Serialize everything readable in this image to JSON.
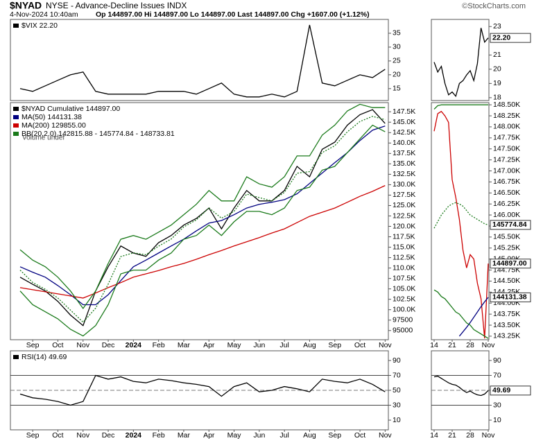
{
  "header": {
    "symbol": "$NYAD",
    "name": "NYSE - Advance-Decline Issues INDX",
    "date": "4-Nov-2024 10:40am",
    "quote": "Op 144897.00 Hi 144897.00 Lo 144897.00 Last 144897.00 Chg +1607.00 (+1.12%)",
    "credit": "©StockCharts.com"
  },
  "chart_data": [
    {
      "type": "line",
      "series": [
        {
          "name": "$VIX 22.20",
          "color": "#000000",
          "values": [
            15,
            14,
            16,
            18,
            20,
            21,
            14,
            13,
            13,
            13,
            13,
            14,
            14,
            14,
            13,
            15,
            17,
            13,
            12,
            12,
            13,
            12,
            14,
            38,
            17,
            16,
            18,
            20,
            19,
            22
          ]
        }
      ],
      "ylim": [
        10.7,
        40
      ],
      "yticks": [
        35,
        30,
        25,
        20,
        15
      ]
    },
    {
      "type": "line",
      "annotation": "Volume undef",
      "categories": [
        null,
        "Sep",
        null,
        "Oct",
        null,
        "Nov",
        null,
        "Dec",
        null,
        "2024",
        null,
        "Feb",
        null,
        "Mar",
        null,
        "Apr",
        null,
        "May",
        null,
        "Jun",
        null,
        "Jul",
        null,
        "Aug",
        null,
        "Sep",
        null,
        "Oct",
        null,
        "Nov"
      ],
      "series": [
        {
          "name": "$NYAD Cumulative 144897.00",
          "color": "#000000",
          "values": [
            107800,
            106100,
            104500,
            102000,
            98700,
            96200,
            104500,
            110300,
            115300,
            113600,
            112800,
            116100,
            117800,
            120300,
            121900,
            124400,
            119400,
            124400,
            128600,
            126100,
            126100,
            128600,
            134400,
            131900,
            138500,
            140200,
            144300,
            146800,
            148000,
            144700
          ]
        },
        {
          "name": "MA(50) 144131.38",
          "color": "#000080",
          "values": [
            110300,
            109000,
            107800,
            105800,
            103600,
            101200,
            101200,
            103600,
            107000,
            110300,
            111900,
            113600,
            115300,
            116900,
            118900,
            120800,
            121400,
            122800,
            124400,
            125300,
            125800,
            126400,
            127800,
            130300,
            132800,
            135300,
            137700,
            140600,
            143100,
            144100
          ]
        },
        {
          "name": "MA(200) 129855.00",
          "color": "#cc0000",
          "values": [
            105300,
            104800,
            104300,
            103800,
            103300,
            102800,
            104000,
            105300,
            106500,
            107800,
            108600,
            109400,
            110300,
            111100,
            112100,
            113200,
            114200,
            115300,
            116300,
            117300,
            118400,
            119400,
            120900,
            122400,
            123400,
            124400,
            125800,
            127200,
            128400,
            129800
          ]
        },
        {
          "name": "BB(20,2.0) 142815.88 - 145774.84 - 148733.81",
          "color": "#1a7a1a",
          "upper": [
            114400,
            111900,
            110300,
            107800,
            104500,
            100300,
            104500,
            111100,
            116900,
            117800,
            116900,
            118600,
            120300,
            122800,
            125300,
            128600,
            126100,
            126100,
            131900,
            130200,
            129400,
            131900,
            136900,
            136900,
            141900,
            144300,
            147700,
            149300,
            148500,
            148500
          ],
          "middle": [
            109500,
            106550,
            104900,
            102800,
            99900,
            97000,
            100350,
            106150,
            112750,
            113650,
            113200,
            115250,
            116950,
            119850,
            121550,
            124450,
            121950,
            123600,
            127750,
            126900,
            126100,
            128150,
            132750,
            133150,
            137700,
            139350,
            142700,
            145150,
            146400,
            145600
          ],
          "lower": [
            104500,
            101200,
            99500,
            97800,
            95300,
            93700,
            96200,
            101200,
            108600,
            109500,
            109500,
            111900,
            113600,
            116900,
            117800,
            120300,
            117800,
            121100,
            123600,
            123600,
            122800,
            124400,
            128600,
            129400,
            133500,
            134400,
            137700,
            141000,
            144300,
            142700
          ]
        }
      ],
      "ylim": [
        92800,
        149700
      ],
      "yticks": [
        {
          "value": 147500,
          "label": "147.5K"
        },
        {
          "value": 145000,
          "label": "145.0K"
        },
        {
          "value": 142500,
          "label": "142.5K"
        },
        {
          "value": 140000,
          "label": "140.0K"
        },
        {
          "value": 137500,
          "label": "137.5K"
        },
        {
          "value": 135000,
          "label": "135.0K"
        },
        {
          "value": 132500,
          "label": "132.5K"
        },
        {
          "value": 130000,
          "label": "130.0K"
        },
        {
          "value": 127500,
          "label": "127.5K"
        },
        {
          "value": 125000,
          "label": "125.0K"
        },
        {
          "value": 122500,
          "label": "122.5K"
        },
        {
          "value": 120000,
          "label": "120.0K"
        },
        {
          "value": 117500,
          "label": "117.5K"
        },
        {
          "value": 115000,
          "label": "115.0K"
        },
        {
          "value": 112500,
          "label": "112.5K"
        },
        {
          "value": 110000,
          "label": "110.0K"
        },
        {
          "value": 107500,
          "label": "107.5K"
        },
        {
          "value": 105000,
          "label": "105.0K"
        },
        {
          "value": 102500,
          "label": "102.5K"
        },
        {
          "value": 100000,
          "label": "100.0K"
        },
        97500,
        95000
      ]
    },
    {
      "type": "line",
      "categories": [
        null,
        "Sep",
        null,
        "Oct",
        null,
        "Nov",
        null,
        "Dec",
        null,
        "2024",
        null,
        "Feb",
        null,
        "Mar",
        null,
        "Apr",
        null,
        "May",
        null,
        "Jun",
        null,
        "Jul",
        null,
        "Aug",
        null,
        "Sep",
        null,
        "Oct",
        null,
        "Nov"
      ],
      "series": [
        {
          "name": "RSI(14) 49.69",
          "color": "#000000",
          "values": [
            45,
            40,
            38,
            35,
            30,
            35,
            70,
            65,
            68,
            62,
            60,
            65,
            63,
            60,
            58,
            55,
            42,
            55,
            60,
            48,
            50,
            55,
            52,
            48,
            65,
            62,
            60,
            65,
            58,
            48
          ]
        }
      ],
      "ylim": [
        -3,
        103
      ],
      "yticks": [
        90,
        70,
        50,
        30,
        10
      ],
      "reference_lines": [
        {
          "value": 70,
          "style": "solid"
        },
        {
          "value": 50,
          "style": "dashed"
        },
        {
          "value": 30,
          "style": "solid"
        }
      ]
    },
    {
      "type": "line",
      "series": [
        {
          "color": "#000000",
          "values": [
            20.5,
            19.8,
            20.2,
            19.0,
            18.2,
            18.4,
            18.1,
            19.0,
            19.2,
            19.6,
            19.9,
            19.2,
            20.4,
            22.9,
            21.9,
            22.2
          ],
          "last_label": "22.20"
        }
      ],
      "ylim": [
        17.8,
        23.5
      ],
      "yticks": [
        23,
        21,
        20,
        19,
        18
      ]
    },
    {
      "type": "line",
      "categories": [
        "14",
        null,
        null,
        null,
        null,
        "21",
        null,
        null,
        null,
        null,
        "28",
        null,
        null,
        null,
        null,
        "Nov"
      ],
      "series": [
        {
          "color": "#cc0000",
          "values": [
            147900,
            148300,
            148350,
            148250,
            148100,
            146800,
            146400,
            145900,
            145200,
            144800,
            145100,
            145000,
            144450,
            144100,
            143200,
            144897
          ],
          "last_label": "144897.00"
        },
        {
          "color": "#000080",
          "values": [
            null,
            null,
            null,
            null,
            null,
            null,
            null,
            143250,
            143350,
            143450,
            143560,
            143680,
            143800,
            143920,
            144030,
            144131
          ],
          "last_label": "144131.38"
        },
        {
          "color": "#1a7a1a",
          "upper": [
            148400,
            148480,
            148500,
            148500,
            148500,
            148500,
            148500,
            148500,
            148500,
            148500,
            148500,
            148500,
            148500,
            148500,
            148500,
            148500
          ],
          "middle": [
            145700,
            145850,
            146000,
            146100,
            146200,
            146250,
            146280,
            146250,
            146200,
            146100,
            146000,
            145950,
            145900,
            145850,
            145800,
            145775
          ],
          "lower": [
            144300,
            144250,
            144150,
            144100,
            144000,
            143900,
            143800,
            143750,
            143650,
            143550,
            143500,
            143400,
            143350,
            143300,
            143250,
            143200
          ],
          "middle_label": "145774.84"
        }
      ],
      "ylim": [
        143170,
        148550
      ],
      "yticks": [
        {
          "value": 148500,
          "label": "148.50K"
        },
        {
          "value": 148250,
          "label": "148.25K"
        },
        {
          "value": 148000,
          "label": "148.00K"
        },
        {
          "value": 147750,
          "label": "147.75K"
        },
        {
          "value": 147500,
          "label": "147.50K"
        },
        {
          "value": 147250,
          "label": "147.25K"
        },
        {
          "value": 147000,
          "label": "147.00K"
        },
        {
          "value": 146750,
          "label": "146.75K"
        },
        {
          "value": 146500,
          "label": "146.50K"
        },
        {
          "value": 146250,
          "label": "146.25K"
        },
        {
          "value": 146000,
          "label": "146.00K"
        },
        {
          "value": 145750,
          "label": "145.75K"
        },
        {
          "value": 145500,
          "label": "145.50K"
        },
        {
          "value": 145250,
          "label": "145.25K"
        },
        {
          "value": 145000,
          "label": "145.00K"
        },
        {
          "value": 144750,
          "label": "144.75K"
        },
        {
          "value": 144500,
          "label": "144.50K"
        },
        {
          "value": 144250,
          "label": "144.25K"
        },
        {
          "value": 144000,
          "label": "144.00K"
        },
        {
          "value": 143750,
          "label": "143.75K"
        },
        {
          "value": 143500,
          "label": "143.50K"
        },
        {
          "value": 143250,
          "label": "143.25K"
        }
      ]
    },
    {
      "type": "line",
      "categories": [
        "14",
        null,
        null,
        null,
        null,
        "21",
        null,
        null,
        null,
        null,
        "28",
        null,
        null,
        null,
        null,
        "Nov"
      ],
      "series": [
        {
          "color": "#000000",
          "values": [
            68,
            69,
            66,
            63,
            60,
            58,
            57,
            54,
            50,
            47,
            49,
            46,
            44,
            43,
            45,
            49.69
          ],
          "last_label": "49.69"
        }
      ],
      "ylim": [
        -3,
        103
      ],
      "yticks": [
        90,
        70,
        50,
        30,
        10
      ],
      "reference_lines": [
        {
          "value": 70,
          "style": "solid"
        },
        {
          "value": 50,
          "style": "dashed"
        },
        {
          "value": 30,
          "style": "solid"
        }
      ]
    }
  ]
}
